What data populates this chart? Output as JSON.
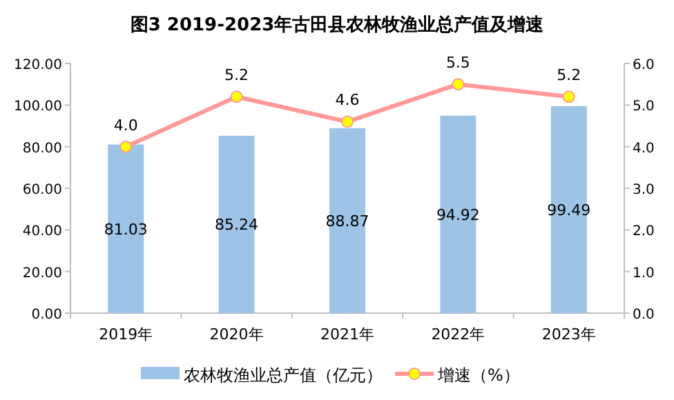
{
  "chart_data": {
    "type": "bar",
    "title": "图3 2019-2023年古田县农林牧渔业总产值及增速",
    "categories": [
      "2019年",
      "2020年",
      "2021年",
      "2022年",
      "2023年"
    ],
    "series": [
      {
        "name": "农林牧渔业总产值（亿元）",
        "color": "#9dc3e6",
        "values": [
          81.03,
          85.24,
          88.87,
          94.92,
          99.49
        ],
        "value_labels": [
          "81.03",
          "85.24",
          "88.87",
          "94.92",
          "99.49"
        ]
      },
      {
        "name": "增速（%）",
        "type": "line",
        "axis": "y2",
        "color": "#ff9999",
        "values": [
          4.0,
          5.2,
          4.6,
          5.5,
          5.2
        ],
        "value_labels": [
          "4.0",
          "5.2",
          "4.6",
          "5.5",
          "5.2"
        ]
      }
    ],
    "ylim": [
      0,
      120
    ],
    "yticks": [
      {
        "value": 0,
        "label": "0.00"
      },
      {
        "value": 20,
        "label": "20.00"
      },
      {
        "value": 40,
        "label": "40.00"
      },
      {
        "value": 60,
        "label": "60.00"
      },
      {
        "value": 80,
        "label": "80.00"
      },
      {
        "value": 100,
        "label": "100.00"
      },
      {
        "value": 120,
        "label": "120.00"
      }
    ],
    "y2lim": [
      0,
      6
    ],
    "y2ticks": [
      {
        "value": 0,
        "label": "0.0"
      },
      {
        "value": 1,
        "label": "1.0"
      },
      {
        "value": 2,
        "label": "2.0"
      },
      {
        "value": 3,
        "label": "3.0"
      },
      {
        "value": 4,
        "label": "4.0"
      },
      {
        "value": 5,
        "label": "5.0"
      },
      {
        "value": 6,
        "label": "6.0"
      }
    ],
    "marker": "circle",
    "line_style": "solid",
    "legend": "bottom"
  }
}
